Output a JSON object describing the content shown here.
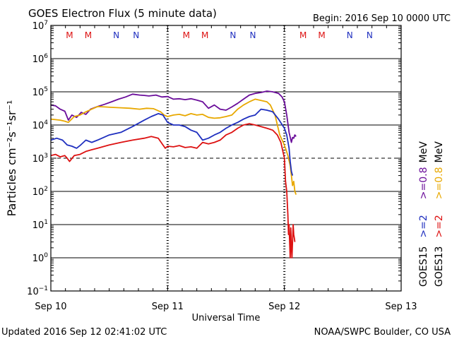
{
  "header": {
    "title": "GOES Electron Flux (5 minute data)",
    "begin": "Begin: 2016 Sep 10 0000 UTC"
  },
  "footer": {
    "updated": "Updated 2016 Sep 12 02:41:02 UTC",
    "credit": "NOAA/SWPC Boulder, CO USA"
  },
  "colors": {
    "goes15_gt2": "#1f2fbf",
    "goes13_gt2": "#dd1111",
    "goes15_gt08": "#6a0d9a",
    "goes13_gt08": "#e8a800",
    "manoeuvre_m": "#dd1111",
    "manoeuvre_n": "#1f2fbf"
  },
  "chart_data": {
    "type": "line",
    "title": "GOES Electron Flux (5 minute data)",
    "xlabel": "Universal Time",
    "ylabel": "Particles cm⁻²s⁻¹sr⁻¹",
    "x_unit": "days since 2016 Sep 10 0000 UTC",
    "xlim": [
      0,
      3
    ],
    "ylim_log10": [
      -1,
      7
    ],
    "y_scale": "log",
    "x_ticks": [
      {
        "x": 0,
        "label": "Sep 10"
      },
      {
        "x": 1,
        "label": "Sep 11"
      },
      {
        "x": 2,
        "label": "Sep 12"
      },
      {
        "x": 3,
        "label": "Sep 13"
      }
    ],
    "y_ticks": [
      {
        "exp": 7,
        "base": "10",
        "sup": "7"
      },
      {
        "exp": 6,
        "base": "10",
        "sup": "6"
      },
      {
        "exp": 5,
        "base": "10",
        "sup": "5"
      },
      {
        "exp": 4,
        "base": "10",
        "sup": "4"
      },
      {
        "exp": 3,
        "base": "10",
        "sup": "3"
      },
      {
        "exp": 2,
        "base": "10",
        "sup": "2"
      },
      {
        "exp": 1,
        "base": "10",
        "sup": "1"
      },
      {
        "exp": 0,
        "base": "10",
        "sup": "0"
      },
      {
        "exp": -1,
        "base": "10",
        "sup": "−1"
      }
    ],
    "solid_gridlines_exp": [
      6,
      5,
      4,
      2,
      1,
      0
    ],
    "dashed_threshold_exp": 3,
    "manoeuvre_markers": [
      {
        "x": 0.16,
        "label": "M",
        "color_key": "manoeuvre_m"
      },
      {
        "x": 0.32,
        "label": "M",
        "color_key": "manoeuvre_m"
      },
      {
        "x": 0.56,
        "label": "N",
        "color_key": "manoeuvre_n"
      },
      {
        "x": 0.73,
        "label": "N",
        "color_key": "manoeuvre_n"
      },
      {
        "x": 1.16,
        "label": "M",
        "color_key": "manoeuvre_m"
      },
      {
        "x": 1.32,
        "label": "M",
        "color_key": "manoeuvre_m"
      },
      {
        "x": 1.56,
        "label": "N",
        "color_key": "manoeuvre_n"
      },
      {
        "x": 1.73,
        "label": "N",
        "color_key": "manoeuvre_n"
      },
      {
        "x": 2.16,
        "label": "M",
        "color_key": "manoeuvre_m"
      },
      {
        "x": 2.32,
        "label": "M",
        "color_key": "manoeuvre_m"
      },
      {
        "x": 2.56,
        "label": "N",
        "color_key": "manoeuvre_n"
      },
      {
        "x": 2.73,
        "label": "N",
        "color_key": "manoeuvre_n"
      }
    ],
    "right_legend": {
      "rows": [
        {
          "satellite": "GOES15",
          "energy_a": ">=2",
          "energy_b": ">=0.8",
          "unit": "MeV",
          "color_a_key": "goes15_gt2",
          "color_b_key": "goes15_gt08"
        },
        {
          "satellite": "GOES13",
          "energy_a": ">=2",
          "energy_b": ">=0.8",
          "unit": "MeV",
          "color_a_key": "goes13_gt2",
          "color_b_key": "goes13_gt08"
        }
      ]
    },
    "series": [
      {
        "name": "GOES15 >=0.8 MeV",
        "color_key": "goes15_gt08",
        "x": [
          0,
          0.04,
          0.08,
          0.12,
          0.15,
          0.18,
          0.22,
          0.26,
          0.3,
          0.34,
          0.4,
          0.46,
          0.52,
          0.58,
          0.64,
          0.7,
          0.76,
          0.8,
          0.84,
          0.9,
          0.95,
          1.0,
          1.05,
          1.1,
          1.15,
          1.2,
          1.25,
          1.3,
          1.35,
          1.4,
          1.45,
          1.5,
          1.55,
          1.6,
          1.65,
          1.7,
          1.75,
          1.8,
          1.85,
          1.9,
          1.95,
          1.98,
          2.0,
          2.02,
          2.04,
          2.06,
          2.07,
          2.08,
          2.09,
          2.1
        ],
        "y": [
          40000,
          38000,
          30000,
          26000,
          14000,
          20000,
          17000,
          24000,
          21000,
          30000,
          36000,
          42000,
          50000,
          60000,
          70000,
          85000,
          80000,
          78000,
          75000,
          80000,
          70000,
          72000,
          60000,
          62000,
          58000,
          62000,
          56000,
          50000,
          32000,
          40000,
          30000,
          28000,
          35000,
          45000,
          60000,
          80000,
          90000,
          95000,
          105000,
          100000,
          90000,
          70000,
          50000,
          20000,
          6000,
          3000,
          4200,
          4000,
          5000,
          4500
        ]
      },
      {
        "name": "GOES13 >=0.8 MeV",
        "color_key": "goes13_gt08",
        "x": [
          0,
          0.04,
          0.08,
          0.12,
          0.15,
          0.2,
          0.25,
          0.3,
          0.35,
          0.4,
          0.46,
          0.52,
          0.6,
          0.68,
          0.76,
          0.82,
          0.88,
          0.94,
          0.97,
          1.0,
          1.05,
          1.1,
          1.15,
          1.2,
          1.25,
          1.3,
          1.35,
          1.4,
          1.45,
          1.5,
          1.55,
          1.6,
          1.65,
          1.7,
          1.75,
          1.8,
          1.85,
          1.88,
          1.92,
          1.96,
          1.99,
          2.01,
          2.03,
          2.05,
          2.06,
          2.07,
          2.08,
          2.09,
          2.1
        ],
        "y": [
          15000,
          14500,
          14000,
          13000,
          12000,
          18000,
          20000,
          25000,
          30000,
          36000,
          35000,
          34000,
          33000,
          32000,
          30000,
          32000,
          31000,
          25000,
          20000,
          18000,
          20000,
          21000,
          19000,
          22000,
          20000,
          21000,
          17000,
          16000,
          16500,
          18000,
          20000,
          30000,
          40000,
          50000,
          60000,
          55000,
          50000,
          40000,
          20000,
          5000,
          3000,
          2000,
          1200,
          600,
          300,
          150,
          200,
          100,
          80
        ]
      },
      {
        "name": "GOES15 >=2 MeV",
        "color_key": "goes15_gt2",
        "x": [
          0,
          0.05,
          0.1,
          0.14,
          0.18,
          0.22,
          0.25,
          0.3,
          0.35,
          0.4,
          0.5,
          0.6,
          0.7,
          0.8,
          0.86,
          0.92,
          0.96,
          1.0,
          1.05,
          1.1,
          1.15,
          1.2,
          1.25,
          1.3,
          1.35,
          1.4,
          1.45,
          1.5,
          1.55,
          1.6,
          1.65,
          1.7,
          1.75,
          1.8,
          1.85,
          1.9,
          1.95,
          2.0,
          2.02,
          2.04,
          2.05,
          2.06,
          2.07
        ],
        "y": [
          3500,
          4000,
          3500,
          2500,
          2300,
          2000,
          2400,
          3500,
          3000,
          3500,
          5000,
          6000,
          9000,
          14000,
          18000,
          22000,
          20000,
          12000,
          10000,
          10000,
          9000,
          7000,
          6000,
          3500,
          4000,
          5000,
          6000,
          8000,
          10000,
          12000,
          15000,
          18000,
          20000,
          30000,
          28000,
          25000,
          15000,
          8000,
          5000,
          2000,
          800,
          400,
          300
        ]
      },
      {
        "name": "GOES13 >=2 MeV",
        "color_key": "goes13_gt2",
        "x": [
          0,
          0.04,
          0.08,
          0.12,
          0.14,
          0.16,
          0.2,
          0.25,
          0.3,
          0.35,
          0.4,
          0.5,
          0.6,
          0.7,
          0.8,
          0.86,
          0.92,
          0.96,
          0.98,
          1.0,
          1.05,
          1.1,
          1.15,
          1.2,
          1.25,
          1.3,
          1.35,
          1.4,
          1.45,
          1.5,
          1.55,
          1.6,
          1.65,
          1.7,
          1.75,
          1.8,
          1.85,
          1.9,
          1.94,
          1.97,
          2.0,
          2.01,
          2.02,
          2.03,
          2.035,
          2.04,
          2.045,
          2.05,
          2.055,
          2.06,
          2.065,
          2.07,
          2.075,
          2.08,
          2.085,
          2.09
        ],
        "y": [
          1200,
          1300,
          1100,
          1200,
          1000,
          800,
          1200,
          1300,
          1600,
          1800,
          2000,
          2500,
          3000,
          3500,
          4000,
          4500,
          4000,
          2500,
          2000,
          2300,
          2200,
          2400,
          2100,
          2200,
          2000,
          3000,
          2700,
          3000,
          3500,
          5000,
          6000,
          8000,
          10000,
          11000,
          10000,
          9000,
          8000,
          7000,
          5000,
          3000,
          1000,
          200,
          100,
          20,
          5,
          10,
          3,
          1,
          8,
          2,
          1,
          3,
          10,
          5,
          4,
          3
        ]
      }
    ]
  }
}
